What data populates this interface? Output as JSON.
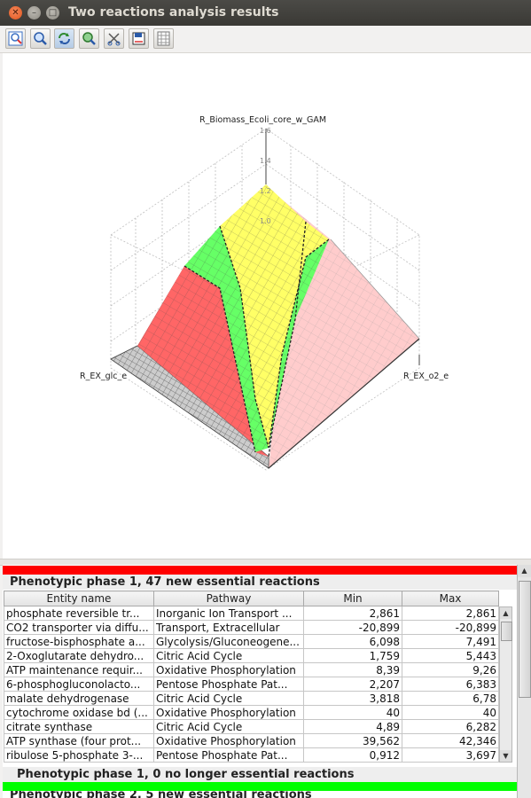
{
  "window": {
    "title": "Two reactions analysis results"
  },
  "toolbar": {
    "buttons": [
      "zoom-fit",
      "zoom",
      "rotate",
      "pan",
      "cut",
      "save",
      "grid"
    ]
  },
  "chart": {
    "z_axis_label": "R_Biomass_Ecoli_core_w_GAM",
    "x_axis_label": "R_EX_glc_e",
    "y_axis_label": "R_EX_o2_e",
    "z_ticks": [
      "1.6",
      "1.4",
      "1.2",
      "1.0"
    ],
    "colors": {
      "red": "#ff6666",
      "green": "#66ff66",
      "yellow": "#ffff66",
      "pink": "#ffcccc",
      "gray": "#888888"
    }
  },
  "phase1": {
    "title": "Phenotypic phase 1, 47 new essential reactions",
    "color": "#ff0000",
    "columns": [
      "Entity name",
      "Pathway",
      "Min",
      "Max"
    ],
    "rows": [
      [
        "phosphate reversible tr...",
        "Inorganic Ion Transport ...",
        "2,861",
        "2,861"
      ],
      [
        "CO2 transporter via diffu...",
        "Transport, Extracellular",
        "-20,899",
        "-20,899"
      ],
      [
        "fructose-bisphosphate a...",
        "Glycolysis/Gluconeogene...",
        "6,098",
        "7,491"
      ],
      [
        "2-Oxoglutarate dehydro...",
        "Citric Acid Cycle",
        "1,759",
        "5,443"
      ],
      [
        "ATP maintenance requir...",
        "Oxidative Phosphorylation",
        "8,39",
        "9,26"
      ],
      [
        "6-phosphogluconolacto...",
        "Pentose Phosphate Pat...",
        "2,207",
        "6,383"
      ],
      [
        "malate dehydrogenase",
        "Citric Acid Cycle",
        "3,818",
        "6,78"
      ],
      [
        "cytochrome oxidase bd (...",
        "Oxidative Phosphorylation",
        "40",
        "40"
      ],
      [
        "citrate synthase",
        "Citric Acid Cycle",
        "4,89",
        "6,282"
      ],
      [
        "ATP synthase (four prot...",
        "Oxidative Phosphorylation",
        "39,562",
        "42,346"
      ],
      [
        "ribulose 5-phosphate 3-...",
        "Pentose Phosphate Pat...",
        "0,912",
        "3,697"
      ]
    ]
  },
  "phase2": {
    "title": "Phenotypic phase 1, 0 no longer essential reactions",
    "color": "#00ff00",
    "next_title_partial": "Phenotypic phase 2, 5 new essential reactions"
  }
}
